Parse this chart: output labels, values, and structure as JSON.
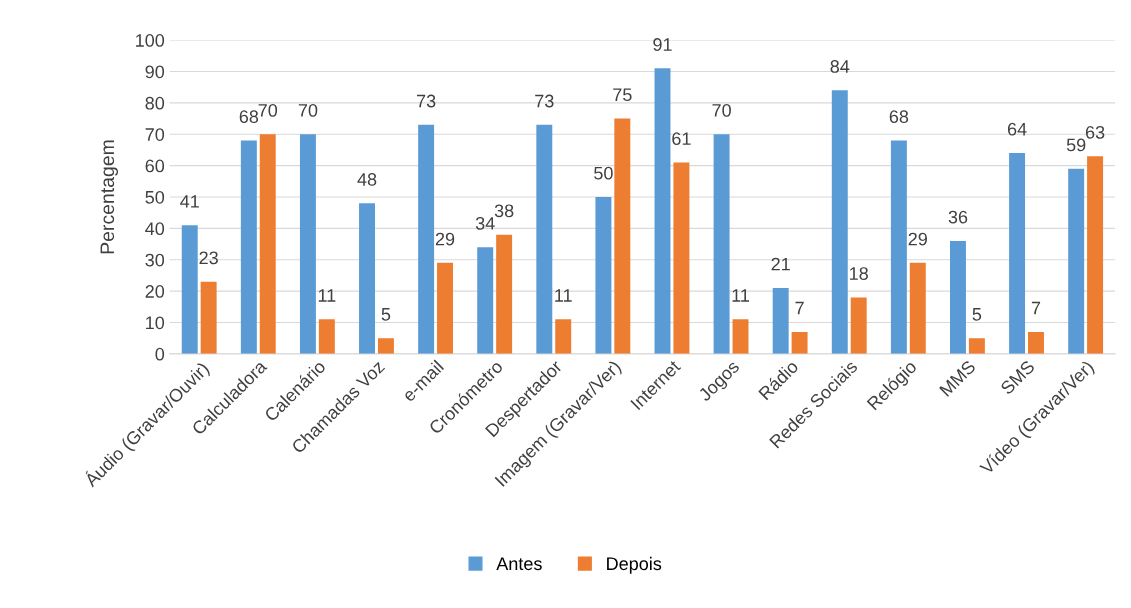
{
  "chart_data": {
    "type": "bar",
    "ylabel": "Percentagem",
    "categories": [
      "Áudio (Gravar/Ouvir)",
      "Calculadora",
      "Calenário",
      "Chamadas Voz",
      "e-mail",
      "Cronómetro",
      "Despertador",
      "Imagem (Gravar/Ver)",
      "Internet",
      "Jogos",
      "Rádio",
      "Redes Sociais",
      "Relógio",
      "MMS",
      "SMS",
      "Vídeo (Gravar/Ver)"
    ],
    "series": [
      {
        "name": "Antes",
        "color": "#5b9bd5",
        "values": [
          41,
          68,
          70,
          48,
          73,
          34,
          73,
          50,
          91,
          70,
          21,
          84,
          68,
          36,
          64,
          59
        ]
      },
      {
        "name": "Depois",
        "color": "#ed7d31",
        "values": [
          23,
          70,
          11,
          5,
          29,
          38,
          11,
          75,
          61,
          11,
          7,
          18,
          29,
          5,
          7,
          63
        ]
      }
    ],
    "ylim": [
      0,
      100
    ],
    "yticks": [
      0,
      10,
      20,
      30,
      40,
      50,
      60,
      70,
      80,
      90,
      100
    ],
    "grid": "y",
    "legend": "bottom",
    "data_labels": true
  }
}
